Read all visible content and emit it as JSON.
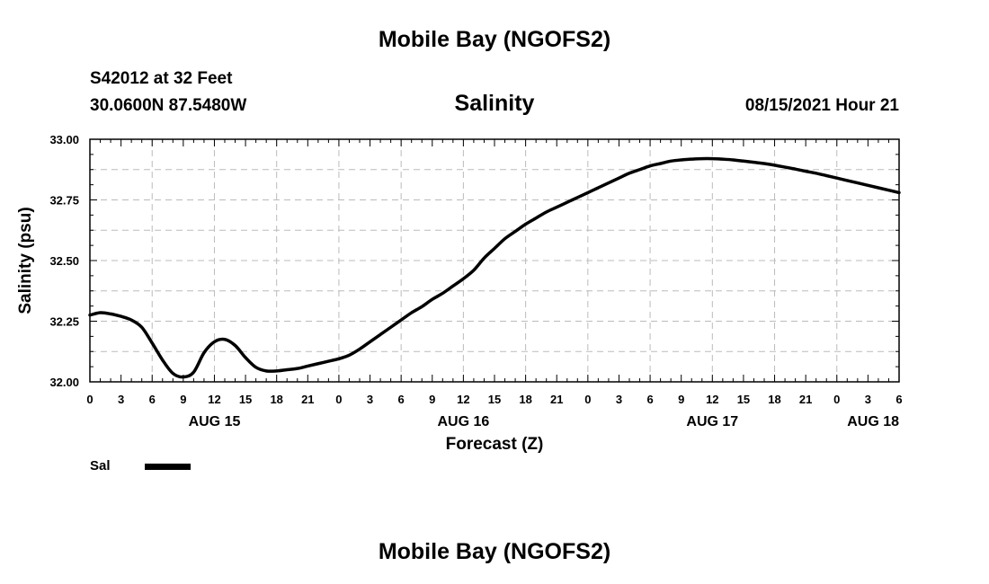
{
  "header": {
    "title": "Mobile Bay (NGOFS2)",
    "station": "S42012 at 32 Feet",
    "coordinates": "30.0600N  87.5480W",
    "subtitle": "Salinity",
    "timestamp": "08/15/2021 Hour 21"
  },
  "footer": {
    "title": "Mobile Bay (NGOFS2)"
  },
  "legend": {
    "label": "Sal",
    "placement": "bottom-left"
  },
  "chart_data": {
    "type": "line",
    "title": "Salinity",
    "xlabel": "Forecast (Z)",
    "ylabel": "Salinity (psu)",
    "xlim": [
      0,
      78
    ],
    "ylim": [
      32.0,
      33.0
    ],
    "grid": true,
    "x_tick_labels": [
      "0",
      "3",
      "6",
      "9",
      "12",
      "15",
      "18",
      "21",
      "0",
      "3",
      "6",
      "9",
      "12",
      "15",
      "18",
      "21",
      "0",
      "3",
      "6",
      "9",
      "12",
      "15",
      "18",
      "21",
      "0",
      "3",
      "6"
    ],
    "y_tick_labels": [
      "32.00",
      "32.25",
      "32.50",
      "32.75",
      "33.00"
    ],
    "day_labels": [
      {
        "label": "AUG 15",
        "hour": 12
      },
      {
        "label": "AUG 16",
        "hour": 36
      },
      {
        "label": "AUG 17",
        "hour": 60
      },
      {
        "label": "AUG 18",
        "hour": 78
      }
    ],
    "series": [
      {
        "name": "Sal",
        "color": "#000000",
        "x": [
          0,
          1,
          2,
          3,
          4,
          5,
          6,
          7,
          8,
          9,
          10,
          11,
          12,
          13,
          14,
          15,
          16,
          17,
          18,
          19,
          20,
          21,
          22,
          23,
          24,
          25,
          26,
          27,
          28,
          29,
          30,
          31,
          32,
          33,
          34,
          35,
          36,
          37,
          38,
          39,
          40,
          41,
          42,
          43,
          44,
          45,
          46,
          47,
          48,
          49,
          50,
          51,
          52,
          53,
          54,
          55,
          56,
          57,
          58,
          59,
          60,
          61,
          62,
          63,
          64,
          65,
          66,
          67,
          68,
          69,
          70,
          71,
          72,
          73,
          74,
          75,
          76,
          77,
          78
        ],
        "values": [
          32.275,
          32.285,
          32.28,
          32.27,
          32.255,
          32.225,
          32.16,
          32.09,
          32.035,
          32.02,
          32.04,
          32.12,
          32.165,
          32.175,
          32.15,
          32.1,
          32.06,
          32.045,
          32.045,
          32.05,
          32.055,
          32.065,
          32.075,
          32.085,
          32.095,
          32.11,
          32.135,
          32.165,
          32.195,
          32.225,
          32.255,
          32.285,
          32.31,
          32.34,
          32.365,
          32.395,
          32.425,
          32.46,
          32.51,
          32.55,
          32.59,
          32.62,
          32.65,
          32.675,
          32.7,
          32.72,
          32.74,
          32.76,
          32.78,
          32.8,
          32.82,
          32.84,
          32.86,
          32.875,
          32.89,
          32.9,
          32.91,
          32.915,
          32.918,
          32.92,
          32.92,
          32.918,
          32.915,
          32.91,
          32.905,
          32.9,
          32.893,
          32.885,
          32.877,
          32.868,
          32.86,
          32.85,
          32.84,
          32.83,
          32.82,
          32.81,
          32.8,
          32.79,
          32.78
        ]
      }
    ]
  }
}
